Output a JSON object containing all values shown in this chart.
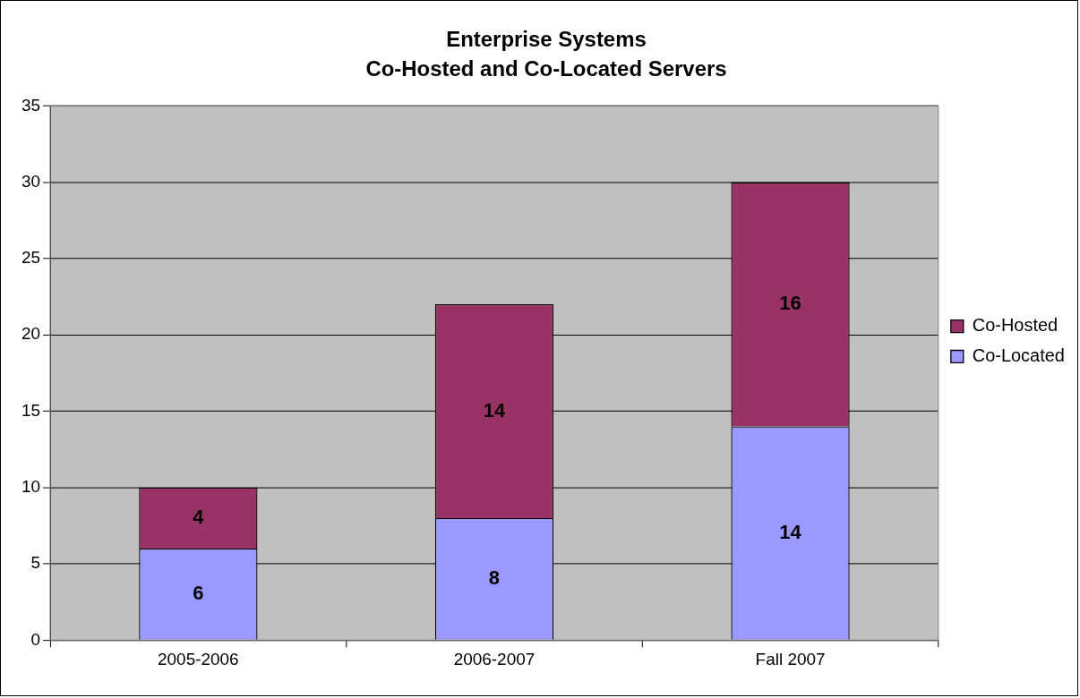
{
  "chart_data": {
    "type": "bar",
    "title": "Enterprise Systems",
    "subtitle": "Co-Hosted and Co-Located Servers",
    "categories": [
      "2005-2006",
      "2006-2007",
      "Fall 2007"
    ],
    "series": [
      {
        "name": "Co-Located",
        "color": "#9999ff",
        "values": [
          6,
          8,
          14
        ]
      },
      {
        "name": "Co-Hosted",
        "color": "#993366",
        "values": [
          4,
          14,
          16
        ]
      }
    ],
    "stacked": true,
    "ylim": [
      0,
      35
    ],
    "yticks": [
      0,
      5,
      10,
      15,
      20,
      25,
      30,
      35
    ],
    "grid": "y",
    "legend": "right",
    "data_labels": true
  }
}
